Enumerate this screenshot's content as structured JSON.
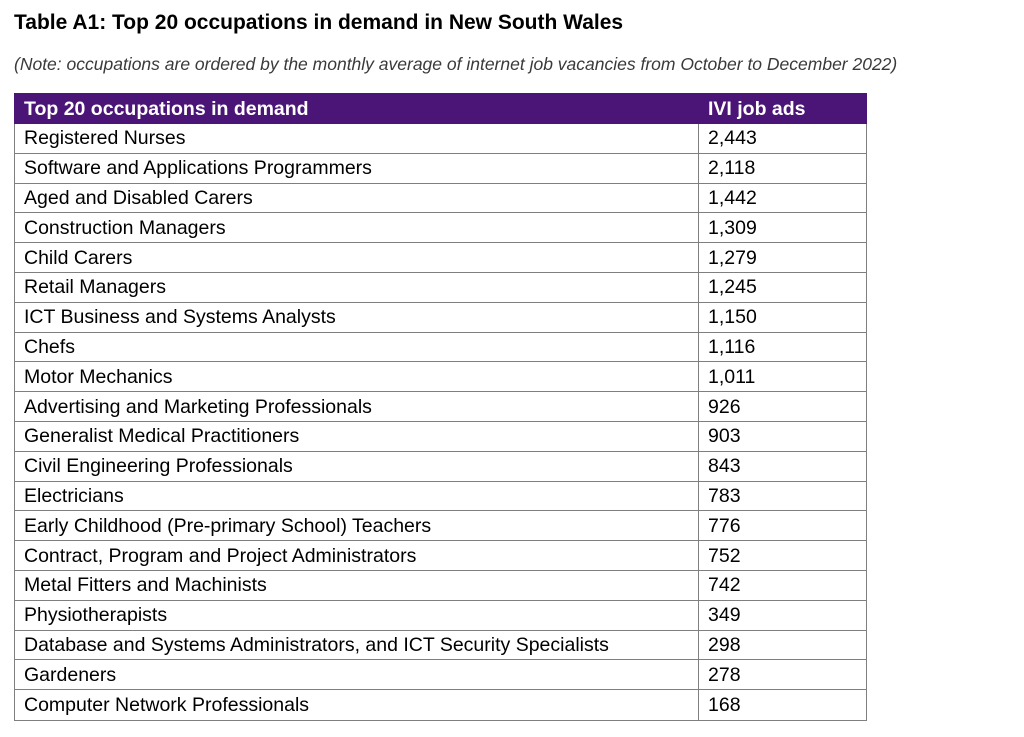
{
  "title": "Table A1: Top 20 occupations in demand in New South Wales",
  "note": "(Note: occupations are ordered by the monthly average of internet job vacancies from October to December 2022)",
  "colors": {
    "header_bg": "#4b1577",
    "header_text": "#ffffff",
    "border": "#7f7f7f"
  },
  "table": {
    "headers": {
      "occupation": "Top 20 occupations in demand",
      "ads": "IVI job ads"
    },
    "rows": [
      {
        "occupation": "Registered Nurses",
        "ads": "2,443"
      },
      {
        "occupation": "Software and Applications Programmers",
        "ads": "2,118"
      },
      {
        "occupation": "Aged and Disabled Carers",
        "ads": "1,442"
      },
      {
        "occupation": "Construction Managers",
        "ads": "1,309"
      },
      {
        "occupation": "Child Carers",
        "ads": "1,279"
      },
      {
        "occupation": "Retail Managers",
        "ads": "1,245"
      },
      {
        "occupation": "ICT Business and Systems Analysts",
        "ads": "1,150"
      },
      {
        "occupation": "Chefs",
        "ads": "1,116"
      },
      {
        "occupation": "Motor Mechanics",
        "ads": "1,011"
      },
      {
        "occupation": "Advertising and Marketing Professionals",
        "ads": "926"
      },
      {
        "occupation": "Generalist Medical Practitioners",
        "ads": "903"
      },
      {
        "occupation": "Civil Engineering Professionals",
        "ads": "843"
      },
      {
        "occupation": "Electricians",
        "ads": "783"
      },
      {
        "occupation": "Early Childhood (Pre-primary School) Teachers",
        "ads": "776"
      },
      {
        "occupation": "Contract, Program and Project Administrators",
        "ads": "752"
      },
      {
        "occupation": "Metal Fitters and Machinists",
        "ads": "742"
      },
      {
        "occupation": "Physiotherapists",
        "ads": "349"
      },
      {
        "occupation": "Database and Systems Administrators, and ICT Security Specialists",
        "ads": "298"
      },
      {
        "occupation": "Gardeners",
        "ads": "278"
      },
      {
        "occupation": "Computer Network Professionals",
        "ads": "168"
      }
    ]
  }
}
